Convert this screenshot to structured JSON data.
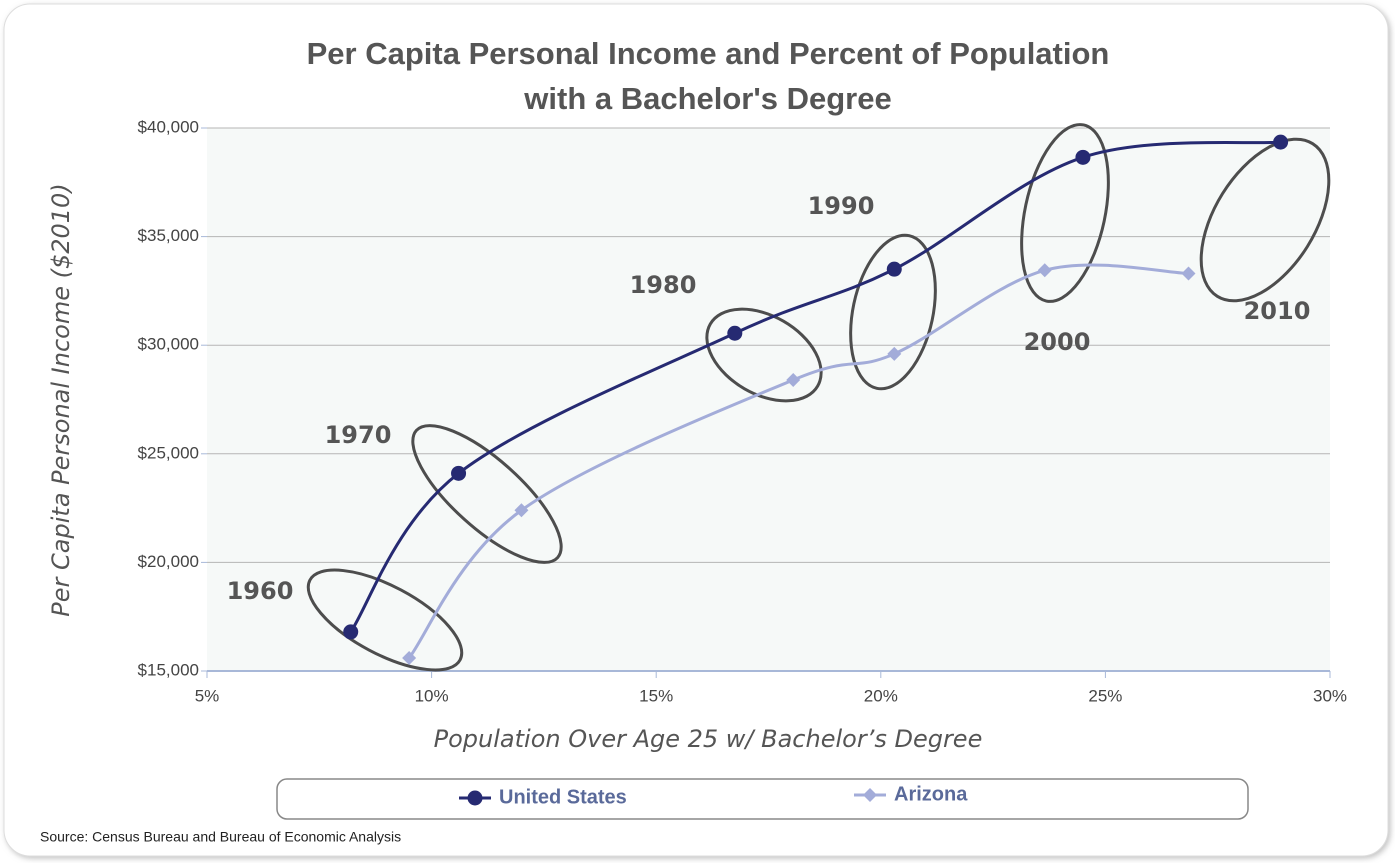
{
  "chart_data": {
    "type": "line",
    "title": "Per Capita Personal Income and Percent of Population",
    "subtitle": "with a Bachelor's Degree",
    "x_label": "Population Over Age 25 w/ Bachelor’s Degree",
    "y_label": "Per Capita Personal Income ($2010)",
    "source": "Source: Census Bureau and Bureau of Economic Analysis",
    "annotations": [
      "1960",
      "1970",
      "1980",
      "1990",
      "2000",
      "2010"
    ],
    "series": [
      {
        "name": "United States",
        "color": "#262a72",
        "marker": "circle",
        "x": [
          8.2,
          10.6,
          16.75,
          20.3,
          24.5,
          28.9
        ],
        "values": [
          16800,
          24100,
          30550,
          33500,
          38650,
          39350
        ]
      },
      {
        "name": "Arizona",
        "color": "#a3acd9",
        "marker": "diamond",
        "x": [
          9.5,
          12.0,
          18.05,
          20.3,
          23.65,
          26.85
        ],
        "values": [
          15600,
          22400,
          28400,
          29600,
          33450,
          33300
        ]
      }
    ],
    "xlim": [
      5,
      30
    ],
    "xticks": [
      {
        "value": 5,
        "label": "5%"
      },
      {
        "value": 10,
        "label": "10%"
      },
      {
        "value": 15,
        "label": "15%"
      },
      {
        "value": 20,
        "label": "20%"
      },
      {
        "value": 25,
        "label": "25%"
      },
      {
        "value": 30,
        "label": "30%"
      }
    ],
    "ylim": [
      15000,
      40000
    ],
    "yticks": [
      {
        "value": 15000,
        "label": "$15,000"
      },
      {
        "value": 20000,
        "label": "$20,000"
      },
      {
        "value": 25000,
        "label": "$25,000"
      },
      {
        "value": 30000,
        "label": "$30,000"
      },
      {
        "value": 35000,
        "label": "$35,000"
      },
      {
        "value": 40000,
        "label": "$40,000"
      }
    ],
    "grid": true,
    "legend": "bottom"
  }
}
